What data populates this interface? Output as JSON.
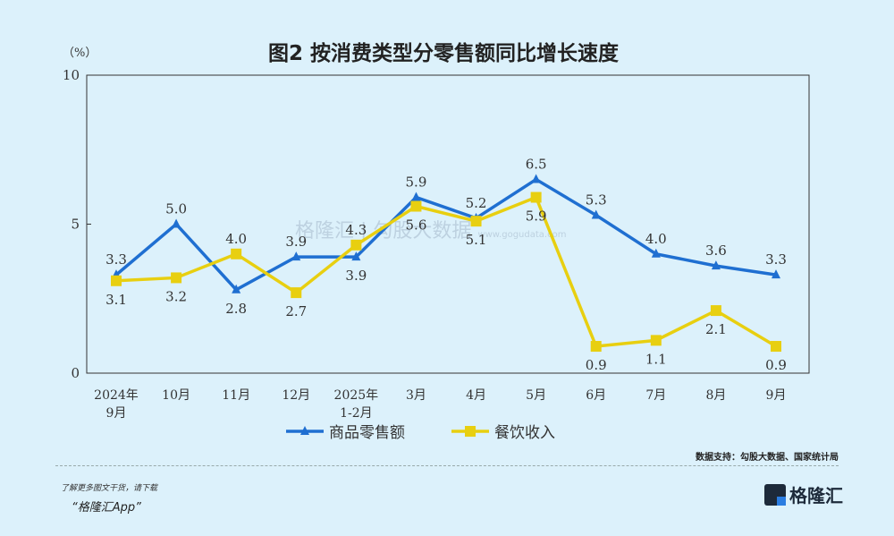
{
  "chart_data": {
    "type": "line",
    "title": "图2  按消费类型分零售额同比增长速度",
    "ylabel": "（%）",
    "ylim": [
      0,
      10
    ],
    "yticks": [
      "0",
      "5",
      "10"
    ],
    "categories": [
      [
        "2024年",
        "9月"
      ],
      [
        "10月"
      ],
      [
        "11月"
      ],
      [
        "12月"
      ],
      [
        "2025年",
        "1-2月"
      ],
      [
        "3月"
      ],
      [
        "4月"
      ],
      [
        "5月"
      ],
      [
        "6月"
      ],
      [
        "7月"
      ],
      [
        "8月"
      ],
      [
        "9月"
      ]
    ],
    "series": [
      {
        "name": "商品零售额",
        "color": "#1f6fd1",
        "marker": "triangle",
        "values": [
          3.3,
          5.0,
          2.8,
          3.9,
          3.9,
          5.9,
          5.2,
          6.5,
          5.3,
          4.0,
          3.6,
          3.3
        ],
        "label_pos": [
          "above",
          "above",
          "below",
          "above",
          "below",
          "above",
          "above",
          "above",
          "above",
          "above",
          "above",
          "above"
        ]
      },
      {
        "name": "餐饮收入",
        "color": "#e8cf10",
        "marker": "square",
        "values": [
          3.1,
          3.2,
          4.0,
          2.7,
          4.3,
          5.6,
          5.1,
          5.9,
          0.9,
          1.1,
          2.1,
          0.9
        ],
        "label_pos": [
          "below",
          "below",
          "above",
          "below",
          "above",
          "below",
          "below",
          "below",
          "below",
          "below",
          "below",
          "below"
        ]
      }
    ],
    "legend": "bottom-center",
    "grid": false
  },
  "watermark": {
    "brand": "格隆汇",
    "partner": "勾股大数据",
    "url": "www.gogudata.com"
  },
  "footer": {
    "source": "数据支持：勾股大数据、国家统计局",
    "download_line": "了解更多图文干货，请下载",
    "app_name": "“格隆汇App”",
    "logo_text": "格隆汇",
    "logo_url": "www.gelonghui.com"
  }
}
